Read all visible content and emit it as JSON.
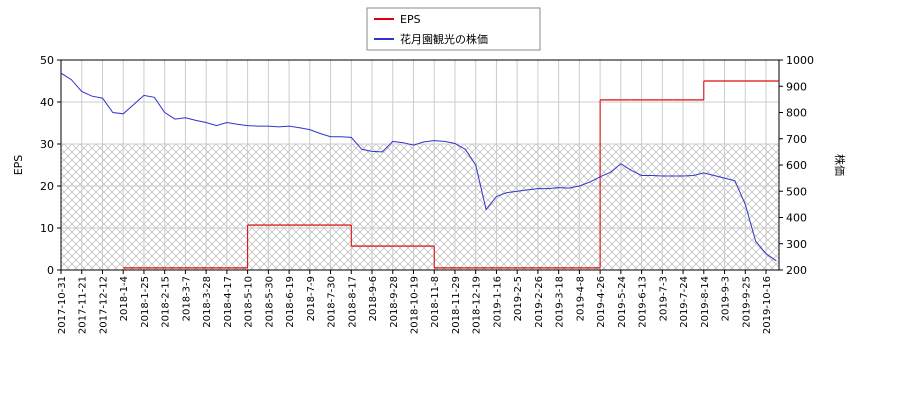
{
  "chart_data": {
    "type": "line",
    "categories": [
      "2017-10-31",
      null,
      "2017-11-21",
      null,
      "2017-12-12",
      null,
      "2018-1-4",
      null,
      "2018-1-25",
      null,
      "2018-2-15",
      null,
      "2018-3-7",
      null,
      "2018-3-28",
      null,
      "2018-4-17",
      null,
      "2018-5-10",
      null,
      "2018-5-30",
      null,
      "2018-6-19",
      null,
      "2018-7-9",
      null,
      "2018-7-30",
      null,
      "2018-8-17",
      null,
      "2018-9-6",
      null,
      "2018-9-28",
      null,
      "2018-10-19",
      null,
      "2018-11-8",
      null,
      "2018-11-29",
      null,
      "2018-12-19",
      null,
      "2019-1-16",
      null,
      "2019-2-5",
      null,
      "2019-2-26",
      null,
      "2019-3-18",
      null,
      "2019-4-8",
      null,
      "2019-4-26",
      null,
      "2019-5-24",
      null,
      "2019-6-13",
      null,
      "2019-7-3",
      null,
      "2019-7-24",
      null,
      "2019-8-14",
      null,
      "2019-9-3",
      null,
      "2019-9-25",
      null,
      "2019-10-16",
      null
    ],
    "series": [
      {
        "name": "EPS",
        "color": "#dd0000",
        "step": true,
        "values": [
          null,
          null,
          null,
          null,
          null,
          null,
          0.5,
          0.5,
          0.5,
          0.5,
          0.5,
          0.5,
          0.5,
          0.5,
          0.5,
          0.5,
          0.5,
          0.5,
          10.7,
          10.7,
          10.7,
          10.7,
          10.7,
          10.7,
          10.7,
          10.7,
          10.7,
          10.7,
          5.7,
          5.7,
          5.7,
          5.7,
          5.7,
          5.7,
          5.7,
          5.7,
          0.5,
          0.5,
          0.5,
          0.5,
          0.5,
          0.5,
          0.5,
          0.5,
          0.5,
          0.5,
          0.5,
          0.5,
          0.5,
          0.5,
          0.5,
          0.5,
          40.5,
          40.5,
          40.5,
          40.5,
          40.5,
          40.5,
          40.5,
          40.5,
          40.5,
          40.5,
          45,
          45,
          45,
          45,
          45,
          45,
          45,
          45
        ]
      },
      {
        "name": "花月園観光の株価",
        "color": "#3333cc",
        "axis": "y2",
        "values": [
          950,
          925,
          880,
          862,
          855,
          800,
          795,
          830,
          865,
          858,
          800,
          775,
          780,
          770,
          762,
          750,
          762,
          755,
          750,
          748,
          748,
          745,
          748,
          742,
          735,
          720,
          708,
          708,
          705,
          660,
          652,
          650,
          690,
          685,
          676,
          688,
          693,
          690,
          682,
          660,
          600,
          430,
          480,
          495,
          500,
          505,
          510,
          510,
          514,
          512,
          520,
          535,
          555,
          572,
          605,
          580,
          560,
          560,
          558,
          558,
          558,
          560,
          570,
          560,
          550,
          540,
          450,
          310,
          262,
          235
        ]
      }
    ],
    "ylabel": "EPS",
    "y2label": "株価",
    "ylim": [
      0,
      50
    ],
    "yticks": [
      0,
      10,
      20,
      30,
      40,
      50
    ],
    "y2lim": [
      200,
      1000
    ],
    "y2ticks": [
      200,
      300,
      400,
      500,
      600,
      700,
      800,
      900,
      1000
    ],
    "grid": true,
    "band": [
      0,
      30
    ],
    "legend": "top"
  }
}
